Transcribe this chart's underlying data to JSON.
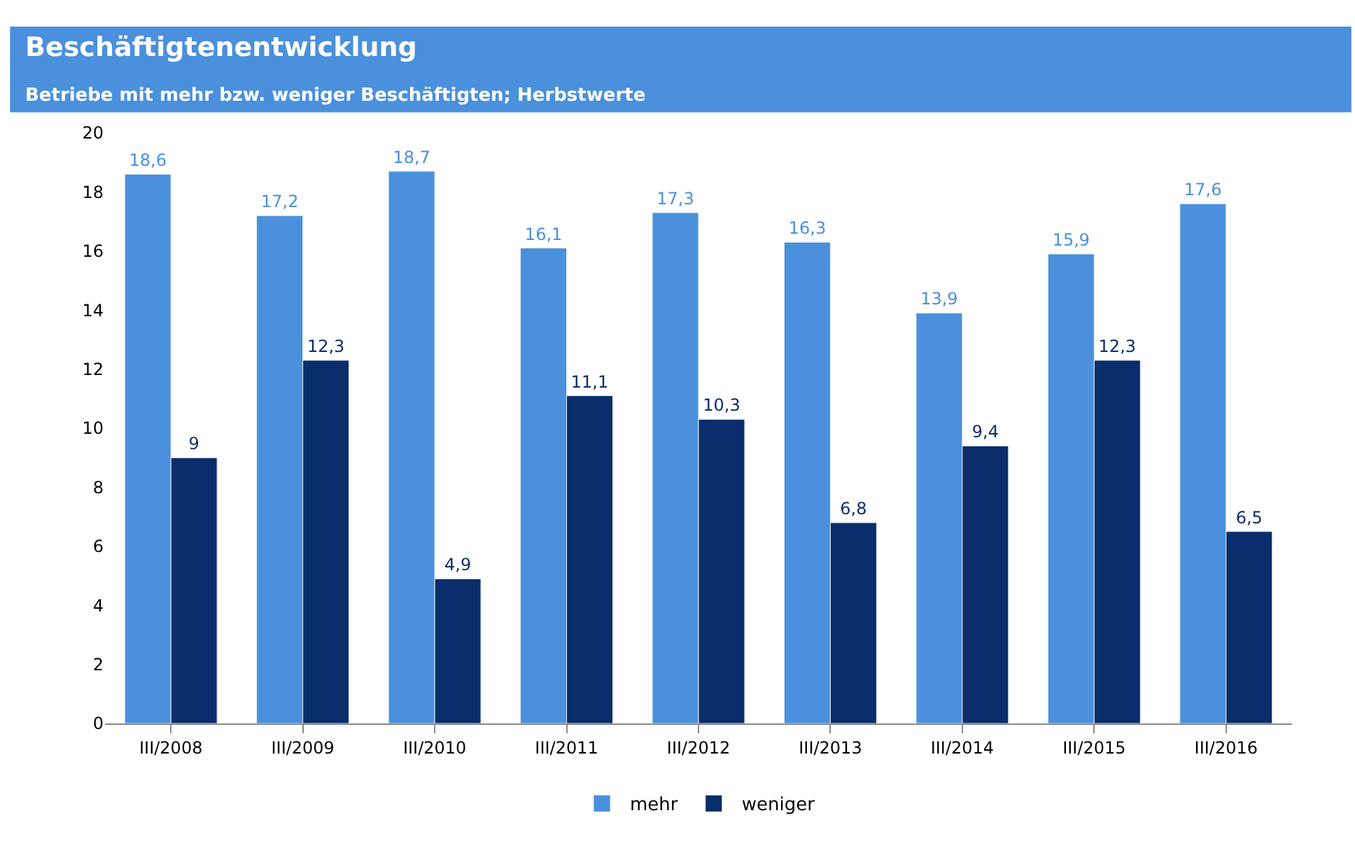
{
  "chart_data": {
    "type": "bar",
    "title": "Beschäftigtenentwicklung",
    "subtitle": "Betriebe mit mehr bzw. weniger Beschäftigten; Herbstwerte",
    "categories": [
      "III/2008",
      "III/2009",
      "III/2010",
      "III/2011",
      "III/2012",
      "III/2013",
      "III/2014",
      "III/2015",
      "III/2016"
    ],
    "series": [
      {
        "name": "mehr",
        "color": "#4a90dc",
        "values": [
          18.6,
          17.2,
          18.7,
          16.1,
          17.3,
          16.3,
          13.9,
          15.9,
          17.6
        ],
        "value_labels": [
          "18,6",
          "17,2",
          "18,7",
          "16,1",
          "17,3",
          "16,3",
          "13,9",
          "15,9",
          "17,6"
        ]
      },
      {
        "name": "weniger",
        "color": "#0a2d6b",
        "values": [
          9,
          12.3,
          4.9,
          11.1,
          10.3,
          6.8,
          9.4,
          12.3,
          6.5
        ],
        "value_labels": [
          "9",
          "12,3",
          "4,9",
          "11,1",
          "10,3",
          "6,8",
          "9,4",
          "12,3",
          "6,5"
        ]
      }
    ],
    "ylim": [
      0,
      20
    ],
    "yticks": [
      0,
      2,
      4,
      6,
      8,
      10,
      12,
      14,
      16,
      18,
      20
    ],
    "legend": "bottom"
  }
}
